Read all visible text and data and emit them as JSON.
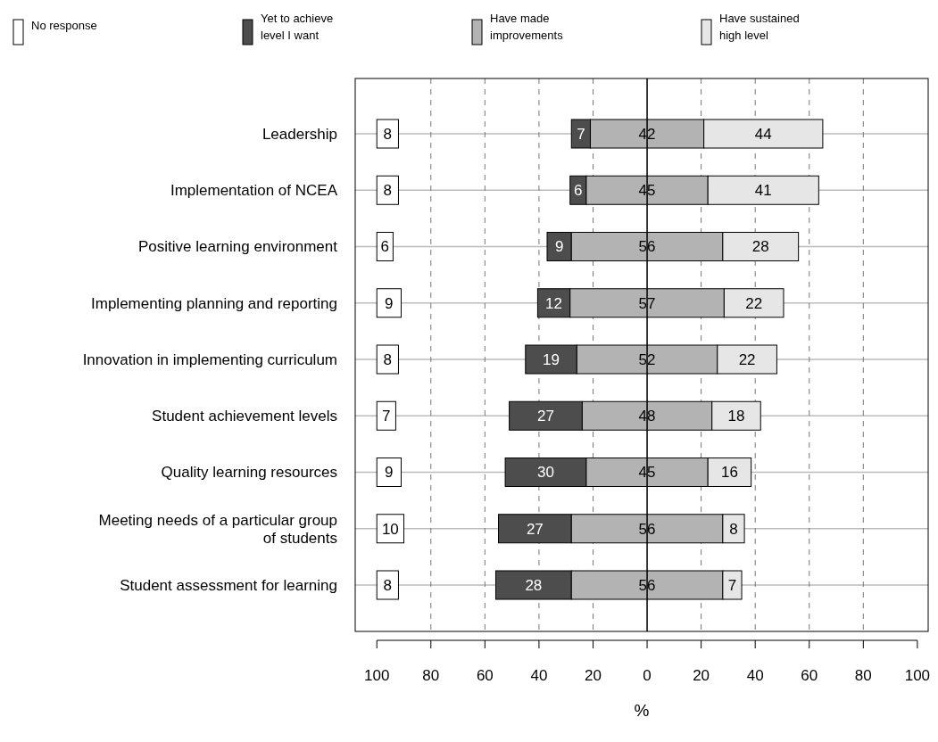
{
  "chart_data": {
    "type": "bar",
    "orientation": "horizontal",
    "xlabel": "%",
    "categories": [
      "Leadership",
      "Implementation of NCEA",
      "Positive learning environment",
      "Implementing planning and reporting",
      "Innovation in implementing curriculum",
      "Student achievement levels",
      "Quality learning resources",
      "Meeting needs of a particular group of students",
      "Student assessment for learning"
    ],
    "series": [
      {
        "name": "No response",
        "color": "#ffffff",
        "values": [
          8,
          8,
          6,
          9,
          8,
          7,
          9,
          10,
          8
        ],
        "base": [
          -100,
          -100,
          -100,
          -100,
          -100,
          -100,
          -100,
          -100,
          -100
        ]
      },
      {
        "name": "Yet to achieve level I want",
        "color": "#4d4d4d",
        "values": [
          7,
          6,
          9,
          12,
          19,
          27,
          30,
          27,
          28
        ],
        "base": [
          -28,
          -28.5,
          -37,
          -40.5,
          -45,
          -51,
          -52.5,
          -55,
          -56
        ]
      },
      {
        "name": "Have made improvements",
        "color": "#b3b3b3",
        "values": [
          42,
          45,
          56,
          57,
          52,
          48,
          45,
          56,
          56
        ],
        "base": [
          -21,
          -22.5,
          -28,
          -28.5,
          -26,
          -24,
          -22.5,
          -28,
          -28
        ]
      },
      {
        "name": "Have sustained high level",
        "color": "#e6e6e6",
        "values": [
          44,
          41,
          28,
          22,
          22,
          18,
          16,
          8,
          7
        ],
        "base": [
          21,
          22.5,
          28,
          28.5,
          26,
          24,
          22.5,
          28,
          28
        ]
      }
    ],
    "xlim": [
      -108,
      104
    ],
    "xticks": [
      {
        "value": -100,
        "label": "100"
      },
      {
        "value": -80,
        "label": "80"
      },
      {
        "value": -60,
        "label": "60"
      },
      {
        "value": -40,
        "label": "40"
      },
      {
        "value": -20,
        "label": "20"
      },
      0,
      20,
      40,
      60,
      80,
      100
    ],
    "ref_lines": [
      {
        "axis": "x",
        "value": -80,
        "line_style": "dashed"
      },
      {
        "axis": "x",
        "value": -60,
        "line_style": "dashed"
      },
      {
        "axis": "x",
        "value": -40,
        "line_style": "dashed"
      },
      {
        "axis": "x",
        "value": -20,
        "line_style": "dashed"
      },
      {
        "axis": "x",
        "value": 20,
        "line_style": "dashed"
      },
      {
        "axis": "x",
        "value": 40,
        "line_style": "dashed"
      },
      {
        "axis": "x",
        "value": 60,
        "line_style": "dashed"
      },
      {
        "axis": "x",
        "value": 80,
        "line_style": "dashed"
      },
      {
        "axis": "x",
        "value": 0,
        "line_style": "solid"
      }
    ],
    "grid": "y",
    "legend": "top",
    "data_labels": true
  }
}
